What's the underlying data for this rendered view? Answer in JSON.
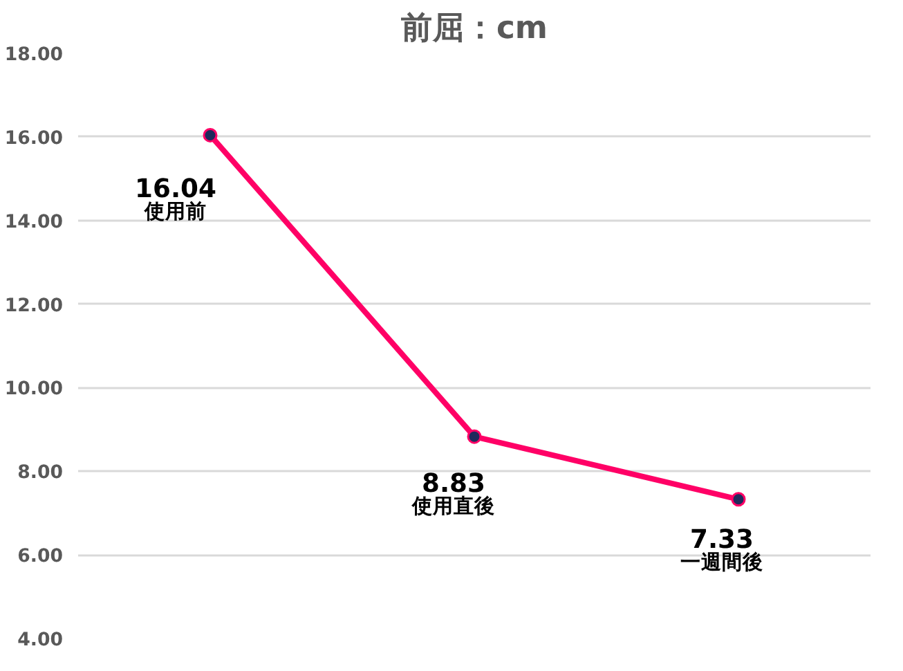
{
  "chart_data": {
    "type": "line",
    "title": "前屈：cm",
    "categories": [
      "使用前",
      "使用直後",
      "一週間後"
    ],
    "series": [
      {
        "color": "#ff0066",
        "values": [
          16.04,
          8.83,
          7.33
        ]
      }
    ],
    "ylim": [
      4,
      18
    ],
    "yticks": [
      {
        "value": 4,
        "label": "4.00"
      },
      {
        "value": 6,
        "label": "6.00"
      },
      {
        "value": 8,
        "label": "8.00"
      },
      {
        "value": 10,
        "label": "10.00"
      },
      {
        "value": 12,
        "label": "12.00"
      },
      {
        "value": 14,
        "label": "14.00"
      },
      {
        "value": 16,
        "label": "16.00"
      },
      {
        "value": 18,
        "label": "18.00"
      }
    ],
    "grid": "y",
    "marker": "circle",
    "line_style": "solid",
    "data_labels": true,
    "tick_labels": "y"
  }
}
